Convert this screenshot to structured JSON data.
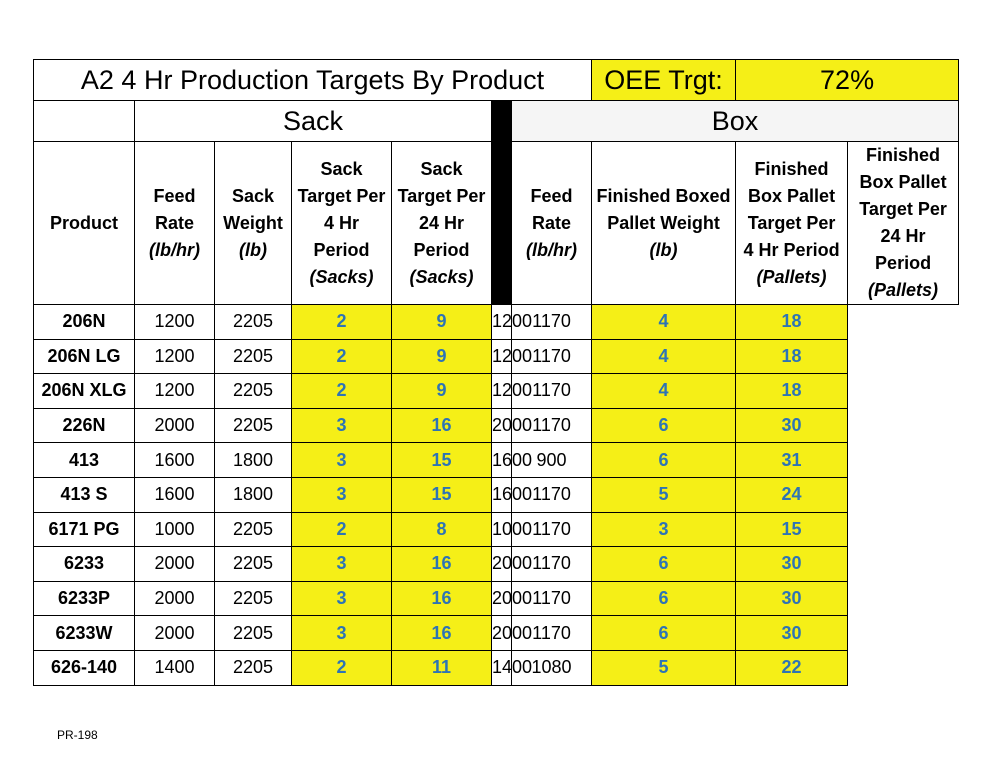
{
  "title": "A2 4 Hr Production Targets By Product",
  "oee_label": "OEE Trgt:",
  "oee_value": "72%",
  "groups": {
    "sack": "Sack",
    "box": "Box"
  },
  "headers": {
    "product": "Product",
    "feed_rate": [
      "Feed",
      "Rate"
    ],
    "feed_rate_unit": "(lb/hr)",
    "sack_weight": [
      "Sack",
      "Weight"
    ],
    "sack_weight_unit": "(lb)",
    "sack_4hr": [
      "Sack",
      "Target Per",
      "4 Hr",
      "Period"
    ],
    "sack_4hr_unit": "(Sacks)",
    "sack_24hr": [
      "Sack",
      "Target Per",
      "24 Hr",
      "Period"
    ],
    "sack_24hr_unit": "(Sacks)",
    "box_feed_rate": [
      "Feed",
      "Rate"
    ],
    "box_feed_rate_unit": "(lb/hr)",
    "pallet_weight": [
      "Finished Boxed",
      "Pallet Weight"
    ],
    "pallet_weight_unit": "(lb)",
    "pallet_4hr": [
      "Finished",
      "Box Pallet",
      "Target Per",
      "4 Hr Period"
    ],
    "pallet_4hr_unit": "(Pallets)",
    "pallet_24hr": [
      "Finished",
      "Box Pallet",
      "Target Per",
      "24 Hr",
      "Period"
    ],
    "pallet_24hr_unit": "(Pallets)"
  },
  "rows": [
    [
      "206N",
      "1200",
      "2205",
      "2",
      "9",
      "1200",
      "1170",
      "4",
      "18"
    ],
    [
      "206N LG",
      "1200",
      "2205",
      "2",
      "9",
      "1200",
      "1170",
      "4",
      "18"
    ],
    [
      "206N XLG",
      "1200",
      "2205",
      "2",
      "9",
      "1200",
      "1170",
      "4",
      "18"
    ],
    [
      "226N",
      "2000",
      "2205",
      "3",
      "16",
      "2000",
      "1170",
      "6",
      "30"
    ],
    [
      "413",
      "1600",
      "1800",
      "3",
      "15",
      "1600",
      "900",
      "6",
      "31"
    ],
    [
      "413 S",
      "1600",
      "1800",
      "3",
      "15",
      "1600",
      "1170",
      "5",
      "24"
    ],
    [
      "6171 PG",
      "1000",
      "2205",
      "2",
      "8",
      "1000",
      "1170",
      "3",
      "15"
    ],
    [
      "6233",
      "2000",
      "2205",
      "3",
      "16",
      "2000",
      "1170",
      "6",
      "30"
    ],
    [
      "6233P",
      "2000",
      "2205",
      "3",
      "16",
      "2000",
      "1170",
      "6",
      "30"
    ],
    [
      "6233W",
      "2000",
      "2205",
      "3",
      "16",
      "2000",
      "1170",
      "6",
      "30"
    ],
    [
      "626-140",
      "1400",
      "2205",
      "2",
      "11",
      "1400",
      "1080",
      "5",
      "22"
    ]
  ],
  "footer": "PR-198",
  "colors": {
    "highlight": "#f5ef17",
    "target_text": "#2e74b5"
  }
}
